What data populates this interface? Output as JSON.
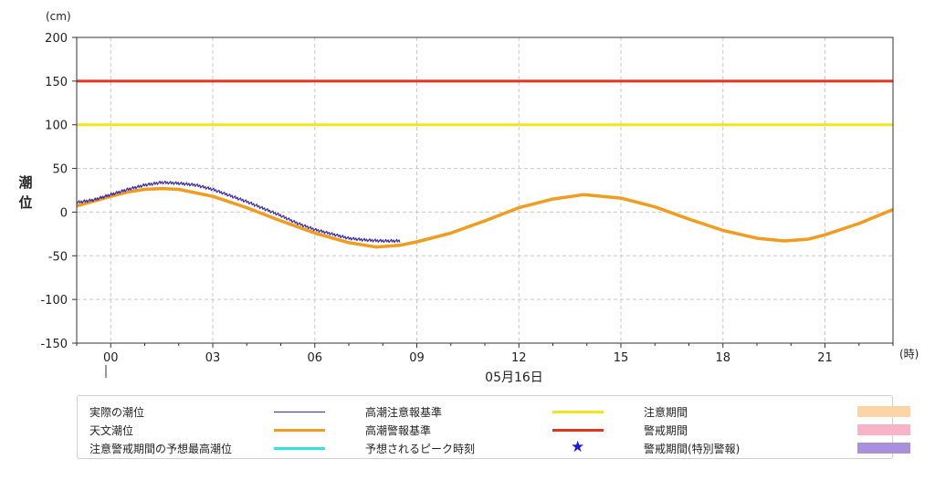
{
  "chart_data": {
    "type": "line",
    "unit_y": "(cm)",
    "unit_x": "(時)",
    "ylabel": "潮位",
    "date_label": "05月16日",
    "ylim": [
      -150,
      200
    ],
    "yticks": [
      200,
      150,
      100,
      50,
      0,
      -50,
      -100,
      -150
    ],
    "xlim": [
      -1,
      23
    ],
    "xticks": [
      0,
      3,
      6,
      9,
      12,
      15,
      18,
      21
    ],
    "xtick_labels": [
      "00",
      "03",
      "06",
      "09",
      "12",
      "15",
      "18",
      "21"
    ],
    "grid": true,
    "series": [
      {
        "name": "天文潮位",
        "color": "#f29c1f",
        "x": [
          -1,
          0,
          0.5,
          1,
          1.5,
          2,
          3,
          4,
          5,
          6,
          7,
          7.8,
          8.5,
          9,
          10,
          11,
          12,
          13,
          13.9,
          15,
          16,
          17,
          18,
          19,
          19.8,
          20.5,
          21,
          22,
          23
        ],
        "values": [
          7,
          18,
          23,
          26,
          27,
          26,
          18,
          5,
          -10,
          -24,
          -35,
          -40,
          -38,
          -34,
          -24,
          -10,
          5,
          15,
          20,
          16,
          6,
          -8,
          -21,
          -30,
          -33,
          -31,
          -26,
          -13,
          3
        ]
      },
      {
        "name": "実際の潮位",
        "color": "#3a2aa8",
        "x": [
          -1,
          -0.5,
          0,
          0.5,
          1,
          1.5,
          2,
          2.5,
          3,
          3.5,
          4,
          4.5,
          5,
          5.5,
          6,
          6.5,
          7,
          7.5,
          8,
          8.5
        ],
        "values": [
          11,
          14,
          20,
          26,
          31,
          34,
          33,
          31,
          26,
          19,
          12,
          4,
          -4,
          -13,
          -20,
          -25,
          -30,
          -32,
          -33,
          -33
        ]
      }
    ],
    "thresholds": [
      {
        "name": "高潮警報基準",
        "value": 150,
        "color": "#e8321e"
      },
      {
        "name": "高潮注意報基準",
        "value": 100,
        "color": "#f5e31b"
      }
    ]
  },
  "legend": {
    "items": [
      {
        "label": "実際の潮位",
        "kind": "thin-line",
        "color": "#3a2aa8"
      },
      {
        "label": "天文潮位",
        "kind": "thick-line",
        "color": "#f29c1f"
      },
      {
        "label": "注意警戒期間の予想最高潮位",
        "kind": "thick-line",
        "color": "#33e0e8"
      },
      {
        "label": "高潮注意報基準",
        "kind": "thick-line",
        "color": "#f5e31b"
      },
      {
        "label": "高潮警報基準",
        "kind": "thick-line",
        "color": "#e8321e"
      },
      {
        "label": "予想されるピーク時刻",
        "kind": "star",
        "color": "#1a1adb",
        "symbol": "★"
      },
      {
        "label": "注意期間",
        "kind": "box",
        "color": "#fbd5a6"
      },
      {
        "label": "警戒期間",
        "kind": "box",
        "color": "#f9b3c8"
      },
      {
        "label": "警戒期間(特別警報)",
        "kind": "box",
        "color": "#a98fdc"
      }
    ]
  }
}
